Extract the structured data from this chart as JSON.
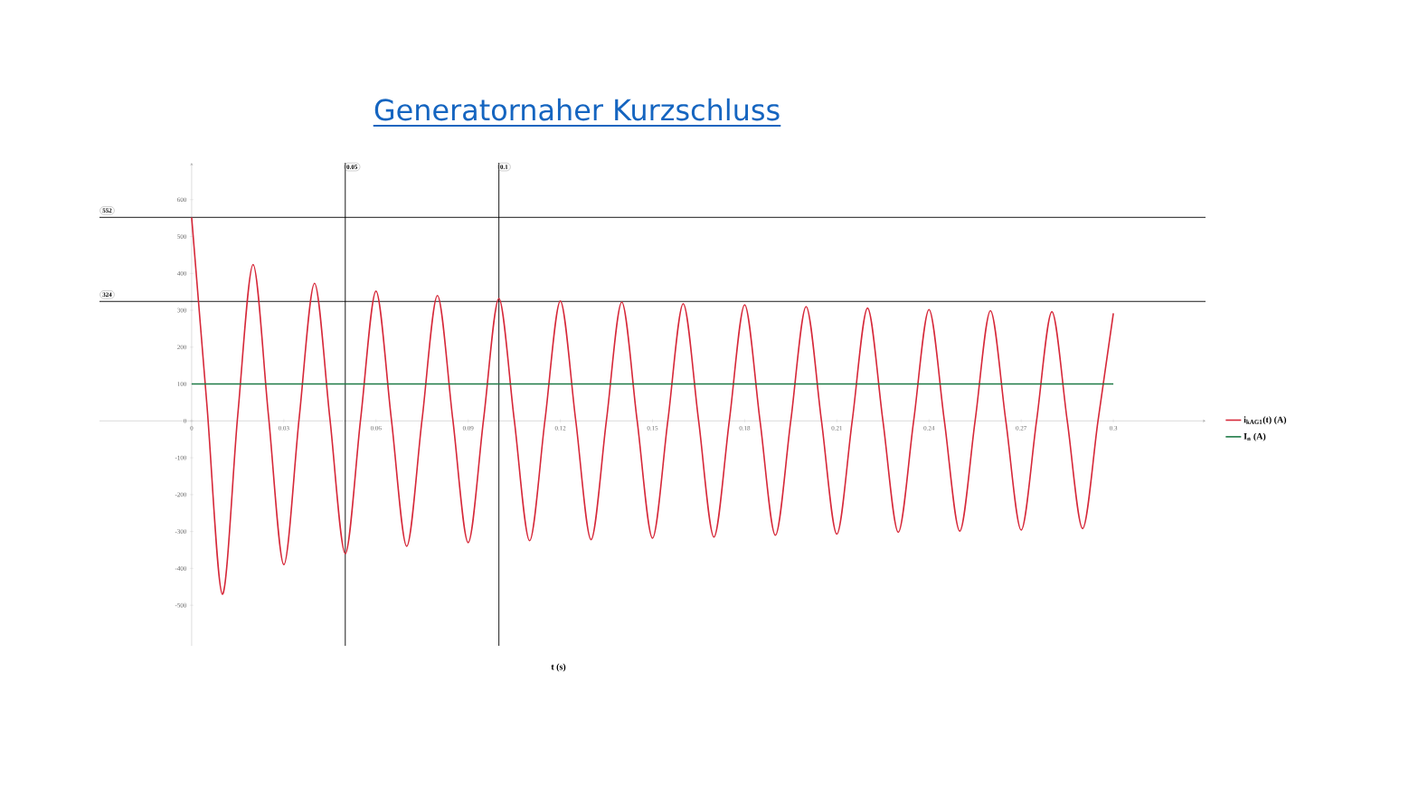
{
  "chart_data": {
    "type": "line",
    "title": "Generatornaher Kurzschluss",
    "xlabel": "t (s)",
    "series": [
      {
        "name": "i$_{kAG1}$(t) (A)",
        "color": "#d62839",
        "x": [
          0,
          0.005,
          0.01,
          0.015,
          0.02,
          0.025,
          0.03,
          0.035,
          0.04,
          0.045,
          0.05,
          0.055,
          0.06,
          0.065,
          0.07,
          0.075,
          0.08,
          0.085,
          0.09,
          0.095,
          0.1,
          0.105,
          0.11,
          0.115,
          0.12,
          0.125,
          0.13,
          0.135,
          0.14,
          0.145,
          0.15,
          0.155,
          0.16,
          0.165,
          0.17,
          0.175,
          0.18,
          0.185,
          0.19,
          0.195,
          0.2,
          0.205,
          0.21,
          0.215,
          0.22,
          0.225,
          0.23,
          0.235,
          0.24,
          0.245,
          0.25,
          0.255,
          0.26,
          0.265,
          0.27,
          0.275,
          0.28,
          0.285,
          0.29,
          0.295,
          0.3
        ],
        "values": [
          552,
          40,
          -470,
          15,
          424,
          15,
          -390,
          8,
          373,
          6,
          -360,
          5,
          352,
          5,
          -340,
          4,
          340,
          4,
          -330,
          3,
          332,
          3,
          -325,
          2,
          325,
          2,
          -322,
          1,
          322,
          1,
          -318,
          1,
          318,
          1,
          -315,
          0,
          315,
          0,
          -310,
          0,
          310,
          0,
          -307,
          0,
          306,
          0,
          -302,
          0,
          302,
          0,
          -299,
          0,
          299,
          0,
          -296,
          0,
          296,
          0,
          -292,
          0,
          292
        ]
      },
      {
        "name": "I$_{n}$ (A)",
        "color": "#1e7a46",
        "x": [
          0,
          0.3
        ],
        "values": [
          100,
          100
        ]
      }
    ],
    "xlim": [
      -0.03,
      0.33
    ],
    "ylim": [
      -610,
      700
    ],
    "xticks": [
      0,
      0.03,
      0.06,
      0.09,
      0.12,
      0.15,
      0.18,
      0.21,
      0.24,
      0.27,
      0.3
    ],
    "yticks": [
      -500,
      -400,
      -300,
      -200,
      -100,
      0,
      100,
      200,
      300,
      400,
      500,
      600
    ],
    "ref_lines": [
      {
        "axis": "y",
        "value": 552,
        "label": "552",
        "color": "#000000"
      },
      {
        "axis": "y",
        "value": 324,
        "label": "324",
        "color": "#000000"
      },
      {
        "axis": "x",
        "value": 0.05,
        "label": "0.05",
        "color": "#000000"
      },
      {
        "axis": "x",
        "value": 0.1,
        "label": "0.1",
        "color": "#000000"
      }
    ],
    "grid": false,
    "legend": "right",
    "marker": "none",
    "line_style": "solid"
  }
}
